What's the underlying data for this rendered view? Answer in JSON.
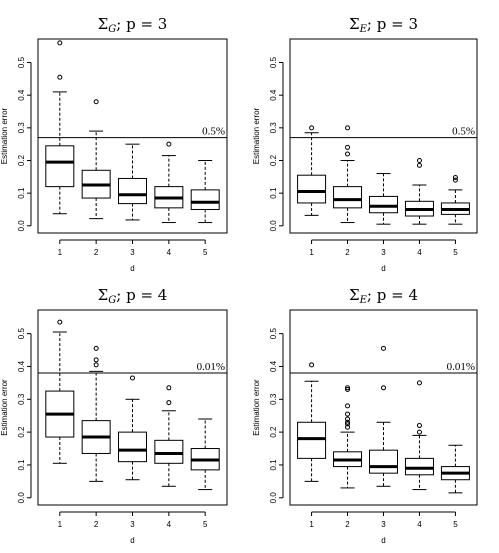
{
  "chart_data": [
    {
      "type": "box",
      "title": "Σ_G; p = 3",
      "title_main": "Σ",
      "title_sub": "G",
      "title_rest": "; p = 3",
      "xlabel": "d",
      "ylabel": "Estimation error",
      "ylim": [
        0,
        0.55
      ],
      "yticks": [
        "0.0",
        "0.1",
        "0.2",
        "0.3",
        "0.4",
        "0.5"
      ],
      "categories": [
        "1",
        "2",
        "3",
        "4",
        "5"
      ],
      "reference_line": {
        "value": 0.27,
        "label": "0.5%"
      },
      "boxes": [
        {
          "wlo": 0.037,
          "q1": 0.12,
          "median": 0.195,
          "q3": 0.245,
          "whi": 0.41,
          "outliers": [
            0.455,
            0.56
          ]
        },
        {
          "wlo": 0.022,
          "q1": 0.085,
          "median": 0.125,
          "q3": 0.17,
          "whi": 0.29,
          "outliers": [
            0.38
          ]
        },
        {
          "wlo": 0.018,
          "q1": 0.068,
          "median": 0.095,
          "q3": 0.145,
          "whi": 0.25,
          "outliers": []
        },
        {
          "wlo": 0.01,
          "q1": 0.055,
          "median": 0.085,
          "q3": 0.12,
          "whi": 0.215,
          "outliers": [
            0.25
          ]
        },
        {
          "wlo": 0.01,
          "q1": 0.05,
          "median": 0.072,
          "q3": 0.11,
          "whi": 0.2,
          "outliers": []
        }
      ]
    },
    {
      "type": "box",
      "title": "Σ_E; p = 3",
      "title_main": "Σ",
      "title_sub": "E",
      "title_rest": "; p = 3",
      "xlabel": "d",
      "ylabel": "Estimation error",
      "ylim": [
        0,
        0.55
      ],
      "yticks": [
        "0.0",
        "0.1",
        "0.2",
        "0.3",
        "0.4",
        "0.5"
      ],
      "categories": [
        "1",
        "2",
        "3",
        "4",
        "5"
      ],
      "reference_line": {
        "value": 0.27,
        "label": "0.5%"
      },
      "boxes": [
        {
          "wlo": 0.032,
          "q1": 0.07,
          "median": 0.105,
          "q3": 0.155,
          "whi": 0.285,
          "outliers": [
            0.3
          ]
        },
        {
          "wlo": 0.01,
          "q1": 0.055,
          "median": 0.08,
          "q3": 0.12,
          "whi": 0.2,
          "outliers": [
            0.22,
            0.24,
            0.3
          ]
        },
        {
          "wlo": 0.005,
          "q1": 0.04,
          "median": 0.06,
          "q3": 0.09,
          "whi": 0.16,
          "outliers": []
        },
        {
          "wlo": 0.005,
          "q1": 0.03,
          "median": 0.05,
          "q3": 0.075,
          "whi": 0.125,
          "outliers": [
            0.185,
            0.2
          ]
        },
        {
          "wlo": 0.005,
          "q1": 0.035,
          "median": 0.05,
          "q3": 0.07,
          "whi": 0.11,
          "outliers": [
            0.14,
            0.148
          ]
        }
      ]
    },
    {
      "type": "box",
      "title": "Σ_G; p = 4",
      "title_main": "Σ",
      "title_sub": "G",
      "title_rest": "; p = 4",
      "xlabel": "d",
      "ylabel": "Estimation error",
      "ylim": [
        0,
        0.55
      ],
      "yticks": [
        "0.0",
        "0.1",
        "0.2",
        "0.3",
        "0.4",
        "0.5"
      ],
      "categories": [
        "1",
        "2",
        "3",
        "4",
        "5"
      ],
      "reference_line": {
        "value": 0.38,
        "label": "0.01%"
      },
      "boxes": [
        {
          "wlo": 0.105,
          "q1": 0.185,
          "median": 0.255,
          "q3": 0.325,
          "whi": 0.505,
          "outliers": [
            0.535
          ]
        },
        {
          "wlo": 0.05,
          "q1": 0.135,
          "median": 0.185,
          "q3": 0.235,
          "whi": 0.385,
          "outliers": [
            0.405,
            0.42,
            0.455
          ]
        },
        {
          "wlo": 0.055,
          "q1": 0.11,
          "median": 0.145,
          "q3": 0.2,
          "whi": 0.3,
          "outliers": [
            0.365
          ]
        },
        {
          "wlo": 0.035,
          "q1": 0.105,
          "median": 0.135,
          "q3": 0.175,
          "whi": 0.265,
          "outliers": [
            0.29,
            0.335
          ]
        },
        {
          "wlo": 0.025,
          "q1": 0.085,
          "median": 0.115,
          "q3": 0.15,
          "whi": 0.24,
          "outliers": []
        }
      ]
    },
    {
      "type": "box",
      "title": "Σ_E; p = 4",
      "title_main": "Σ",
      "title_sub": "E",
      "title_rest": "; p = 4",
      "xlabel": "d",
      "ylabel": "Estimation error",
      "ylim": [
        0,
        0.55
      ],
      "yticks": [
        "0.0",
        "0.1",
        "0.2",
        "0.3",
        "0.4",
        "0.5"
      ],
      "categories": [
        "1",
        "2",
        "3",
        "4",
        "5"
      ],
      "reference_line": {
        "value": 0.38,
        "label": "0.01%"
      },
      "boxes": [
        {
          "wlo": 0.05,
          "q1": 0.12,
          "median": 0.18,
          "q3": 0.23,
          "whi": 0.355,
          "outliers": [
            0.405
          ]
        },
        {
          "wlo": 0.03,
          "q1": 0.095,
          "median": 0.115,
          "q3": 0.14,
          "whi": 0.2,
          "outliers": [
            0.215,
            0.225,
            0.23,
            0.24,
            0.255,
            0.28,
            0.33,
            0.335
          ]
        },
        {
          "wlo": 0.035,
          "q1": 0.075,
          "median": 0.095,
          "q3": 0.145,
          "whi": 0.23,
          "outliers": [
            0.335,
            0.455
          ]
        },
        {
          "wlo": 0.025,
          "q1": 0.07,
          "median": 0.09,
          "q3": 0.12,
          "whi": 0.19,
          "outliers": [
            0.2,
            0.22,
            0.35
          ]
        },
        {
          "wlo": 0.015,
          "q1": 0.055,
          "median": 0.075,
          "q3": 0.095,
          "whi": 0.16,
          "outliers": []
        }
      ]
    }
  ]
}
